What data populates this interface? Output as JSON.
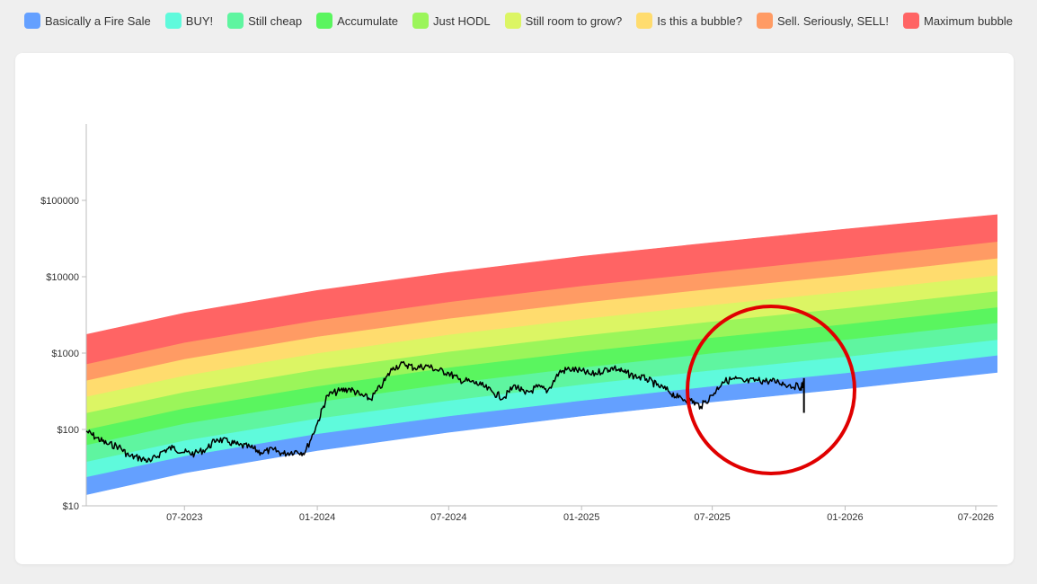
{
  "legend": [
    {
      "label": "Basically a Fire Sale",
      "color": "#64a0ff"
    },
    {
      "label": "BUY!",
      "color": "#5ffadc"
    },
    {
      "label": "Still cheap",
      "color": "#5ff5a0"
    },
    {
      "label": "Accumulate",
      "color": "#5af55f"
    },
    {
      "label": "Just HODL",
      "color": "#9bf55a"
    },
    {
      "label": "Still room to grow?",
      "color": "#dcf564"
    },
    {
      "label": "Is this a bubble?",
      "color": "#ffdc6e"
    },
    {
      "label": "Sell. Seriously, SELL!",
      "color": "#ff9b64"
    },
    {
      "label": "Maximum bubble",
      "color": "#ff6464"
    }
  ],
  "chart_data": {
    "type": "area",
    "y_scale": "log",
    "ylim": [
      10,
      1000000
    ],
    "y_ticks": [
      {
        "value": 10,
        "label": "$10"
      },
      {
        "value": 100,
        "label": "$100"
      },
      {
        "value": 1000,
        "label": "$1000"
      },
      {
        "value": 10000,
        "label": "$10000"
      },
      {
        "value": 100000,
        "label": "$100000"
      }
    ],
    "xlim": [
      "2023-02-15",
      "2026-07-31"
    ],
    "x_ticks": [
      {
        "date": "2023-07-01",
        "label": "07-2023"
      },
      {
        "date": "2024-01-01",
        "label": "01-2024"
      },
      {
        "date": "2024-07-01",
        "label": "07-2024"
      },
      {
        "date": "2025-01-01",
        "label": "01-2025"
      },
      {
        "date": "2025-07-01",
        "label": "07-2025"
      },
      {
        "date": "2026-01-01",
        "label": "01-2026"
      },
      {
        "date": "2026-07-01",
        "label": "07-2026"
      }
    ],
    "bands": {
      "x": [
        "2023-02-15",
        "2023-07-01",
        "2024-01-01",
        "2024-07-01",
        "2025-01-01",
        "2025-07-01",
        "2026-01-01",
        "2026-07-31"
      ],
      "boundaries": [
        {
          "name": "Basically a Fire Sale",
          "bottom": [
            14,
            27,
            53,
            92,
            150,
            230,
            340,
            560
          ],
          "top": [
            24,
            45,
            88,
            150,
            240,
            370,
            550,
            940
          ]
        },
        {
          "name": "BUY!",
          "bottom": [
            24,
            45,
            88,
            150,
            240,
            370,
            550,
            940
          ],
          "top": [
            38,
            72,
            140,
            240,
            390,
            600,
            900,
            1500
          ]
        },
        {
          "name": "Still cheap",
          "bottom": [
            38,
            72,
            140,
            240,
            390,
            600,
            900,
            1500
          ],
          "top": [
            63,
            120,
            230,
            400,
            650,
            1000,
            1500,
            2500
          ]
        },
        {
          "name": "Accumulate",
          "bottom": [
            63,
            120,
            230,
            400,
            650,
            1000,
            1500,
            2500
          ],
          "top": [
            100,
            190,
            370,
            650,
            1050,
            1600,
            2400,
            4000
          ]
        },
        {
          "name": "Just HODL",
          "bottom": [
            100,
            190,
            370,
            650,
            1050,
            1600,
            2400,
            4000
          ],
          "top": [
            165,
            310,
            610,
            1050,
            1700,
            2600,
            3900,
            6500
          ]
        },
        {
          "name": "Still room to grow?",
          "bottom": [
            165,
            310,
            610,
            1050,
            1700,
            2600,
            3900,
            6500
          ],
          "top": [
            270,
            510,
            1000,
            1750,
            2800,
            4300,
            6400,
            10500
          ]
        },
        {
          "name": "Is this a bubble?",
          "bottom": [
            270,
            510,
            1000,
            1750,
            2800,
            4300,
            6400,
            10500
          ],
          "top": [
            440,
            840,
            1650,
            2850,
            4600,
            7000,
            10500,
            17500
          ]
        },
        {
          "name": "Sell. Seriously, SELL!",
          "bottom": [
            440,
            840,
            1650,
            2850,
            4600,
            7000,
            10500,
            17500
          ],
          "top": [
            720,
            1380,
            2700,
            4700,
            7600,
            11500,
            17500,
            29000
          ]
        },
        {
          "name": "Maximum bubble",
          "bottom": [
            720,
            1380,
            2700,
            4700,
            7600,
            11500,
            17500,
            29000
          ],
          "top": [
            1750,
            3350,
            6600,
            11400,
            18500,
            28000,
            42000,
            65000
          ]
        }
      ]
    },
    "price_series": {
      "x": [
        "2023-02-15",
        "2023-03-01",
        "2023-03-15",
        "2023-04-01",
        "2023-04-15",
        "2023-05-01",
        "2023-05-15",
        "2023-06-01",
        "2023-06-15",
        "2023-07-01",
        "2023-07-15",
        "2023-08-01",
        "2023-08-15",
        "2023-09-01",
        "2023-09-15",
        "2023-10-01",
        "2023-10-15",
        "2023-11-01",
        "2023-11-15",
        "2023-12-01",
        "2023-12-15",
        "2024-01-01",
        "2024-01-15",
        "2024-02-01",
        "2024-02-15",
        "2024-03-01",
        "2024-03-15",
        "2024-04-01",
        "2024-04-15",
        "2024-05-01",
        "2024-05-15",
        "2024-06-01",
        "2024-06-15",
        "2024-07-01",
        "2024-07-15",
        "2024-08-01",
        "2024-08-15",
        "2024-09-01",
        "2024-09-15",
        "2024-10-01",
        "2024-10-15",
        "2024-11-01",
        "2024-11-15",
        "2024-12-01",
        "2024-12-15",
        "2025-01-01",
        "2025-01-15",
        "2025-02-01",
        "2025-02-15",
        "2025-03-01",
        "2025-03-15",
        "2025-04-01",
        "2025-04-15",
        "2025-05-01",
        "2025-05-15",
        "2025-06-01",
        "2025-06-15",
        "2025-07-01",
        "2025-07-15",
        "2025-08-01",
        "2025-08-15",
        "2025-09-01",
        "2025-09-15",
        "2025-10-01",
        "2025-10-15",
        "2025-11-01",
        "2025-11-05"
      ],
      "y": [
        95,
        78,
        65,
        60,
        45,
        42,
        38,
        52,
        58,
        50,
        48,
        56,
        75,
        68,
        62,
        58,
        50,
        54,
        48,
        52,
        50,
        120,
        280,
        320,
        340,
        280,
        250,
        400,
        650,
        720,
        640,
        680,
        600,
        550,
        450,
        420,
        380,
        300,
        260,
        380,
        290,
        360,
        320,
        560,
        620,
        580,
        520,
        600,
        640,
        560,
        500,
        460,
        380,
        320,
        260,
        240,
        200,
        280,
        420,
        460,
        420,
        440,
        430,
        420,
        380,
        360,
        400
      ]
    }
  },
  "annotation": {
    "shape": "circle",
    "stroke": "#e00000"
  }
}
